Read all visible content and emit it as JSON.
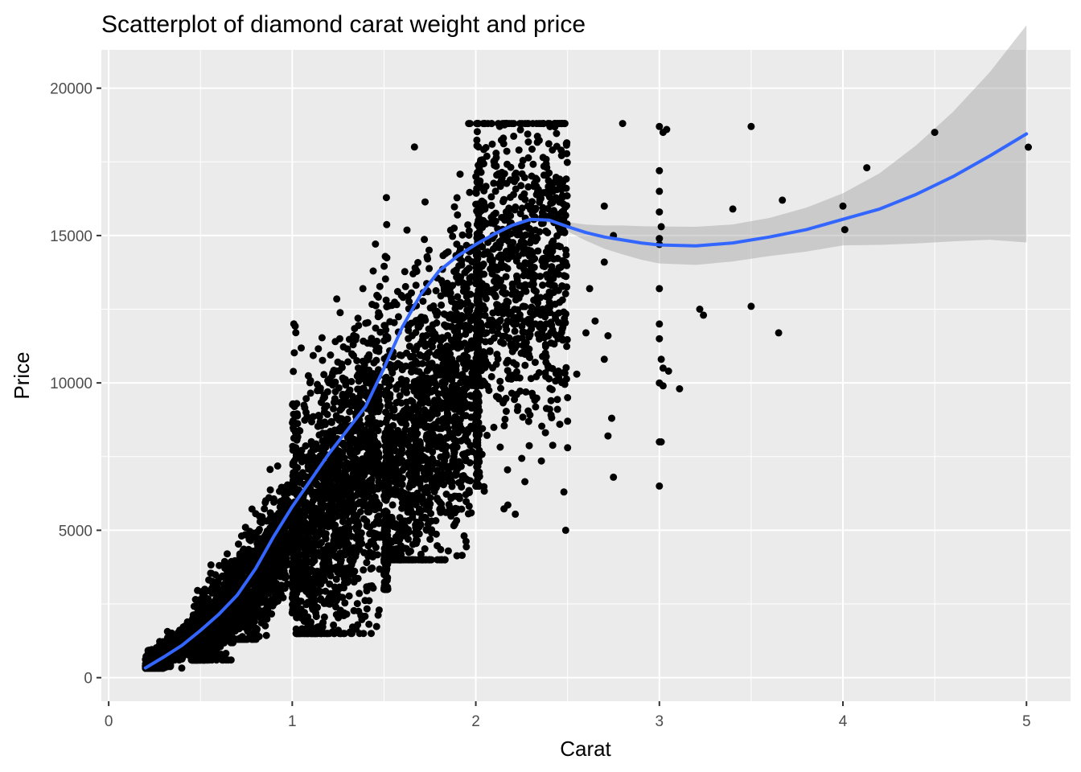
{
  "chart_data": {
    "type": "scatter",
    "title": "Scatterplot of diamond carat weight and price",
    "xlabel": "Carat",
    "ylabel": "Price",
    "xlim": [
      -0.04,
      5.24
    ],
    "ylim": [
      -800,
      21300
    ],
    "x_ticks": [
      0,
      1,
      2,
      3,
      4,
      5
    ],
    "x_tick_labels": [
      "0",
      "1",
      "2",
      "3",
      "4",
      "5"
    ],
    "y_ticks": [
      0,
      5000,
      10000,
      15000,
      20000
    ],
    "y_tick_labels": [
      "0",
      "5000",
      "10000",
      "15000",
      "20000"
    ],
    "grid": true,
    "legend": "none",
    "colors": {
      "panel": "#ebebeb",
      "grid": "#ffffff",
      "points": "#000000",
      "smooth_line": "#3366ff",
      "confidence_band": "#999999"
    },
    "outlier_points": [
      [
        2.8,
        18800
      ],
      [
        2.75,
        15000
      ],
      [
        2.7,
        16000
      ],
      [
        2.7,
        14100
      ],
      [
        2.72,
        11600
      ],
      [
        2.7,
        10800
      ],
      [
        2.74,
        8800
      ],
      [
        2.72,
        8200
      ],
      [
        2.75,
        6800
      ],
      [
        2.65,
        12100
      ],
      [
        2.62,
        13200
      ],
      [
        2.6,
        11700
      ],
      [
        2.5,
        9500
      ],
      [
        2.5,
        8700
      ],
      [
        2.5,
        7800
      ],
      [
        2.48,
        6300
      ],
      [
        2.45,
        10400
      ],
      [
        2.55,
        10300
      ],
      [
        2.41,
        9400
      ],
      [
        2.38,
        11300
      ],
      [
        2.39,
        14200
      ],
      [
        2.45,
        15300
      ],
      [
        2.42,
        16500
      ],
      [
        3.0,
        18700
      ],
      [
        3.02,
        18500
      ],
      [
        3.04,
        18600
      ],
      [
        3.0,
        17200
      ],
      [
        3.0,
        16500
      ],
      [
        3.0,
        15800
      ],
      [
        3.01,
        15300
      ],
      [
        3.0,
        14900
      ],
      [
        3.0,
        14700
      ],
      [
        3.0,
        13200
      ],
      [
        3.0,
        12000
      ],
      [
        3.0,
        11500
      ],
      [
        3.01,
        10800
      ],
      [
        3.02,
        10500
      ],
      [
        3.05,
        10400
      ],
      [
        3.0,
        10000
      ],
      [
        3.02,
        9900
      ],
      [
        3.01,
        8000
      ],
      [
        3.0,
        8000
      ],
      [
        3.0,
        6500
      ],
      [
        3.11,
        9800
      ],
      [
        3.22,
        12500
      ],
      [
        3.24,
        12300
      ],
      [
        3.4,
        15900
      ],
      [
        3.5,
        18700
      ],
      [
        3.5,
        12600
      ],
      [
        3.65,
        11700
      ],
      [
        3.67,
        16200
      ],
      [
        4.0,
        16000
      ],
      [
        4.01,
        15200
      ],
      [
        4.13,
        17300
      ],
      [
        4.5,
        18500
      ],
      [
        5.01,
        18000
      ]
    ],
    "smooth_line": {
      "x": [
        0.2,
        0.3,
        0.4,
        0.5,
        0.6,
        0.7,
        0.8,
        0.9,
        1.0,
        1.1,
        1.2,
        1.3,
        1.4,
        1.5,
        1.6,
        1.7,
        1.8,
        1.9,
        2.0,
        2.1,
        2.2,
        2.3,
        2.4,
        2.5,
        2.6,
        2.7,
        2.8,
        2.9,
        3.0,
        3.2,
        3.4,
        3.6,
        3.8,
        4.0,
        4.2,
        4.4,
        4.6,
        4.8,
        5.0
      ],
      "y": [
        330,
        700,
        1100,
        1600,
        2150,
        2800,
        3700,
        4800,
        5800,
        6700,
        7600,
        8400,
        9200,
        10500,
        11900,
        13000,
        13800,
        14300,
        14700,
        15050,
        15350,
        15550,
        15520,
        15300,
        15100,
        14950,
        14850,
        14750,
        14680,
        14650,
        14750,
        14950,
        15200,
        15550,
        15900,
        16400,
        17000,
        17700,
        18450
      ],
      "se": [
        80,
        40,
        30,
        30,
        30,
        30,
        30,
        30,
        30,
        30,
        30,
        30,
        30,
        30,
        30,
        30,
        30,
        30,
        30,
        40,
        40,
        40,
        50,
        80,
        140,
        200,
        250,
        290,
        320,
        330,
        320,
        330,
        380,
        450,
        620,
        850,
        1120,
        1450,
        1880
      ]
    }
  }
}
